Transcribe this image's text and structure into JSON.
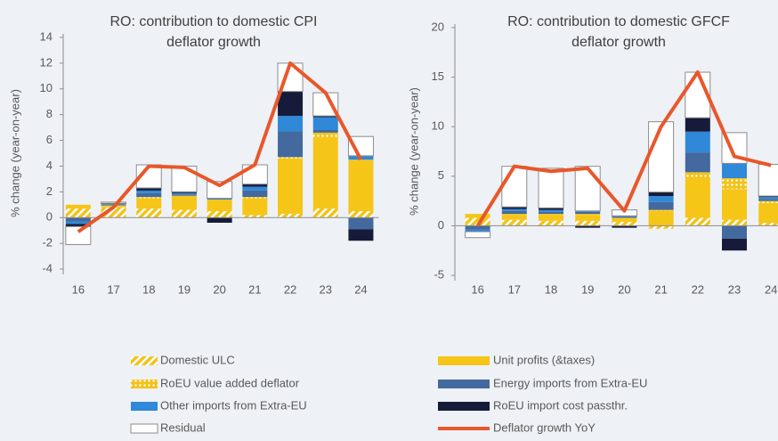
{
  "chart_data": [
    {
      "type": "bar",
      "stacked": true,
      "title": "RO: contribution to domestic CPI deflator growth",
      "y_label": "% change (year-on-year)",
      "categories": [
        "16",
        "17",
        "18",
        "19",
        "20",
        "21",
        "22",
        "23",
        "24"
      ],
      "ylim": [
        -4,
        14
      ],
      "yticks": [
        -4,
        -2,
        0,
        2,
        4,
        6,
        8,
        10,
        12,
        14
      ],
      "series": [
        {
          "name": "Domestic ULC",
          "color": "#f2c318",
          "pattern": "hatch",
          "values": [
            0.7,
            0.8,
            0.7,
            0.6,
            0.5,
            0.2,
            0.3,
            0.7,
            0.5
          ]
        },
        {
          "name": "Unit profits (&taxes)",
          "color": "#f5c518",
          "values": [
            0.3,
            0.1,
            0.8,
            1.0,
            0.8,
            1.3,
            4.3,
            5.5,
            3.9
          ]
        },
        {
          "name": "RoEU value added deflator",
          "color": "#f2c318",
          "pattern": "dots",
          "values": [
            0,
            0.05,
            0.1,
            0.1,
            0.1,
            0.1,
            0.1,
            0.4,
            0.1
          ]
        },
        {
          "name": "Energy imports from Extra-EU",
          "color": "#44699f",
          "values": [
            -0.3,
            0.05,
            0.3,
            0.1,
            0,
            0.5,
            2.0,
            0.2,
            -0.9
          ]
        },
        {
          "name": "Other imports from Extra-EU",
          "color": "#2f88d8",
          "values": [
            -0.2,
            0.05,
            0.2,
            0.1,
            0.1,
            0.3,
            1.2,
            1.0,
            0.3
          ]
        },
        {
          "name": "RoEU import cost passthr.",
          "color": "#161b3a",
          "values": [
            -0.2,
            0.05,
            0.2,
            0.1,
            -0.4,
            0.2,
            1.9,
            0.1,
            -0.9
          ]
        },
        {
          "name": "Residual",
          "color": "#ffffff",
          "values": [
            -1.4,
            0.1,
            1.8,
            2.0,
            1.3,
            1.5,
            2.2,
            1.8,
            1.5
          ]
        },
        {
          "name": "Deflator growth YoY",
          "color": "#e9572a",
          "type": "line",
          "values": [
            -1.1,
            0.8,
            4.0,
            3.9,
            2.5,
            4.1,
            12.0,
            9.7,
            4.5
          ]
        }
      ]
    },
    {
      "type": "bar",
      "stacked": true,
      "title": "RO: contribution to domestic GFCF deflator growth",
      "y_label": "% change (year-on-year)",
      "categories": [
        "16",
        "17",
        "18",
        "19",
        "20",
        "21",
        "22",
        "23",
        "24"
      ],
      "ylim": [
        -5,
        20
      ],
      "yticks": [
        -5,
        0,
        5,
        10,
        15,
        20
      ],
      "series": [
        {
          "name": "Domestic ULC",
          "color": "#f2c318",
          "pattern": "hatch",
          "values": [
            0.8,
            0.6,
            0.5,
            0.5,
            0.4,
            -0.3,
            0.8,
            0.6,
            0.3
          ]
        },
        {
          "name": "Unit profits (&taxes)",
          "color": "#f5c518",
          "values": [
            0.4,
            0.5,
            0.6,
            0.6,
            0.3,
            1.5,
            4.0,
            3.1,
            2.0
          ]
        },
        {
          "name": "RoEU value added deflator",
          "color": "#f2c318",
          "pattern": "dots",
          "values": [
            0,
            0.1,
            0.1,
            0.1,
            0.1,
            0.1,
            0.6,
            1.1,
            0.2
          ]
        },
        {
          "name": "Energy imports from Extra-EU",
          "color": "#44699f",
          "values": [
            -0.4,
            0.3,
            0.2,
            0.2,
            0.1,
            0.8,
            2.0,
            -1.3,
            0.2
          ]
        },
        {
          "name": "Other imports from Extra-EU",
          "color": "#2f88d8",
          "values": [
            -0.2,
            0.2,
            0.2,
            0.1,
            0.1,
            0.6,
            2.1,
            1.5,
            0.2
          ]
        },
        {
          "name": "RoEU import cost passthr.",
          "color": "#161b3a",
          "values": [
            0,
            0.2,
            0.2,
            -0.2,
            -0.2,
            0.4,
            1.4,
            -1.2,
            0.1
          ]
        },
        {
          "name": "Residual",
          "color": "#ffffff",
          "values": [
            -0.6,
            4.1,
            4.0,
            4.5,
            0.6,
            7.1,
            4.6,
            3.1,
            3.2
          ]
        },
        {
          "name": "Deflator growth YoY",
          "color": "#e9572a",
          "type": "line",
          "values": [
            0,
            6.0,
            5.5,
            5.8,
            1.5,
            10.0,
            15.5,
            7.0,
            6.1
          ]
        }
      ]
    }
  ]
}
